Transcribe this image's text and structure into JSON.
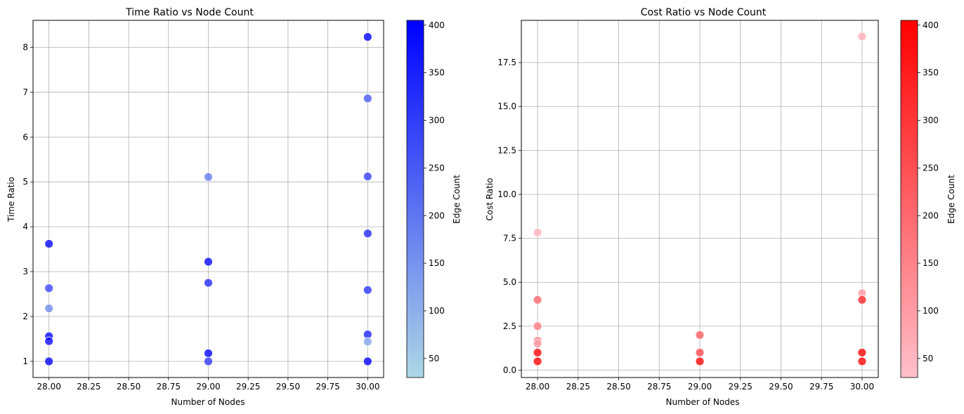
{
  "chart_data": [
    {
      "type": "scatter",
      "title": "Time Ratio vs Node Count",
      "xlabel": "Number of Nodes",
      "ylabel": "Time Ratio",
      "xlim": [
        27.9,
        30.1
      ],
      "ylim": [
        0.64,
        8.6
      ],
      "xticks": [
        "28.00",
        "28.25",
        "28.50",
        "28.75",
        "29.00",
        "29.25",
        "29.50",
        "29.75",
        "30.00"
      ],
      "yticks": [
        "1",
        "2",
        "3",
        "4",
        "5",
        "6",
        "7",
        "8"
      ],
      "grid": true,
      "colorbar": {
        "label": "Edge Count",
        "range": [
          30,
          405
        ],
        "ticks": [
          "50",
          "100",
          "150",
          "200",
          "250",
          "300",
          "350",
          "400"
        ],
        "colors": [
          "#add8e6",
          "#0000ff"
        ]
      },
      "points": [
        {
          "x": 28,
          "y": 3.62,
          "c": 390
        },
        {
          "x": 28,
          "y": 2.63,
          "c": 280
        },
        {
          "x": 28,
          "y": 2.18,
          "c": 160
        },
        {
          "x": 28,
          "y": 1.56,
          "c": 390
        },
        {
          "x": 28,
          "y": 1.45,
          "c": 380
        },
        {
          "x": 28,
          "y": 1.0,
          "c": 395
        },
        {
          "x": 29,
          "y": 5.11,
          "c": 190
        },
        {
          "x": 29,
          "y": 3.22,
          "c": 390
        },
        {
          "x": 29,
          "y": 2.75,
          "c": 330
        },
        {
          "x": 29,
          "y": 1.18,
          "c": 395
        },
        {
          "x": 29,
          "y": 1.0,
          "c": 300
        },
        {
          "x": 30,
          "y": 8.23,
          "c": 400
        },
        {
          "x": 30,
          "y": 6.86,
          "c": 250
        },
        {
          "x": 30,
          "y": 5.12,
          "c": 290
        },
        {
          "x": 30,
          "y": 3.85,
          "c": 330
        },
        {
          "x": 30,
          "y": 2.59,
          "c": 310
        },
        {
          "x": 30,
          "y": 1.6,
          "c": 340
        },
        {
          "x": 30,
          "y": 1.44,
          "c": 120
        },
        {
          "x": 30,
          "y": 1.0,
          "c": 400
        }
      ]
    },
    {
      "type": "scatter",
      "title": "Cost Ratio vs Node Count",
      "xlabel": "Number of Nodes",
      "ylabel": "Cost Ratio",
      "xlim": [
        27.9,
        30.1
      ],
      "ylim": [
        -0.42,
        19.9
      ],
      "xticks": [
        "28.00",
        "28.25",
        "28.50",
        "28.75",
        "29.00",
        "29.25",
        "29.50",
        "29.75",
        "30.00"
      ],
      "yticks": [
        "0.0",
        "2.5",
        "5.0",
        "7.5",
        "10.0",
        "12.5",
        "15.0",
        "17.5"
      ],
      "grid": true,
      "colorbar": {
        "label": "Edge Count",
        "range": [
          30,
          405
        ],
        "ticks": [
          "50",
          "100",
          "150",
          "200",
          "250",
          "300",
          "350",
          "400"
        ],
        "colors": [
          "#ffc0cb",
          "#ff0000"
        ]
      },
      "points": [
        {
          "x": 28,
          "y": 7.83,
          "c": 60
        },
        {
          "x": 28,
          "y": 4.0,
          "c": 200
        },
        {
          "x": 28,
          "y": 2.5,
          "c": 160
        },
        {
          "x": 28,
          "y": 1.67,
          "c": 150
        },
        {
          "x": 28,
          "y": 1.5,
          "c": 100
        },
        {
          "x": 28,
          "y": 1.0,
          "c": 390
        },
        {
          "x": 28,
          "y": 0.5,
          "c": 395
        },
        {
          "x": 29,
          "y": 2.0,
          "c": 220
        },
        {
          "x": 29,
          "y": 1.0,
          "c": 260
        },
        {
          "x": 29,
          "y": 0.5,
          "c": 390
        },
        {
          "x": 30,
          "y": 18.98,
          "c": 70
        },
        {
          "x": 30,
          "y": 4.38,
          "c": 100
        },
        {
          "x": 30,
          "y": 4.0,
          "c": 330
        },
        {
          "x": 30,
          "y": 1.0,
          "c": 395
        },
        {
          "x": 30,
          "y": 0.5,
          "c": 390
        }
      ]
    }
  ]
}
